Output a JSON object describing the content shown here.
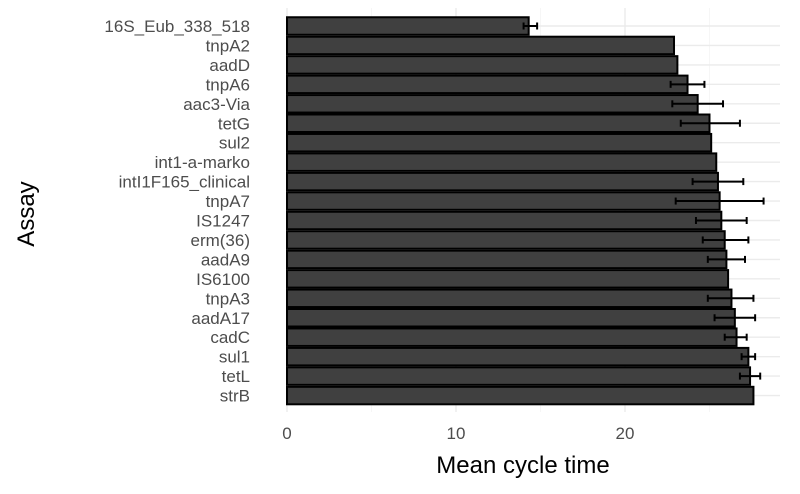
{
  "chart_data": {
    "type": "bar",
    "orientation": "horizontal",
    "xlabel": "Mean cycle time",
    "ylabel": "Assay",
    "xlim": [
      0,
      28.5
    ],
    "xticks": [
      0,
      10,
      20
    ],
    "grid": true,
    "legend": "none",
    "bar_color": "#404040",
    "categories": [
      "16S_Eub_338_518",
      "tnpA2",
      "aadD",
      "tnpA6",
      "aac3-Via",
      "tetG",
      "sul2",
      "int1-a-marko",
      "intI1F165_clinical",
      "tnpA7",
      "IS1247",
      "erm(36)",
      "aadA9",
      "IS6100",
      "tnpA3",
      "aadA17",
      "cadC",
      "sul1",
      "tetL",
      "strB"
    ],
    "values": [
      14.3,
      22.9,
      23.1,
      23.7,
      24.3,
      25.0,
      25.1,
      25.4,
      25.5,
      25.6,
      25.7,
      25.9,
      26.0,
      26.1,
      26.3,
      26.5,
      26.6,
      27.3,
      27.4,
      27.6
    ],
    "error": [
      [
        14.0,
        14.8
      ],
      null,
      null,
      [
        22.7,
        24.7
      ],
      [
        22.8,
        25.8
      ],
      [
        23.3,
        26.8
      ],
      null,
      null,
      [
        24.0,
        27.0
      ],
      [
        23.0,
        28.2
      ],
      [
        24.2,
        27.2
      ],
      [
        24.6,
        27.3
      ],
      [
        24.9,
        27.1
      ],
      null,
      [
        24.9,
        27.6
      ],
      [
        25.3,
        27.7
      ],
      [
        25.9,
        27.2
      ],
      [
        26.9,
        27.7
      ],
      [
        26.8,
        28.0
      ],
      null
    ]
  }
}
